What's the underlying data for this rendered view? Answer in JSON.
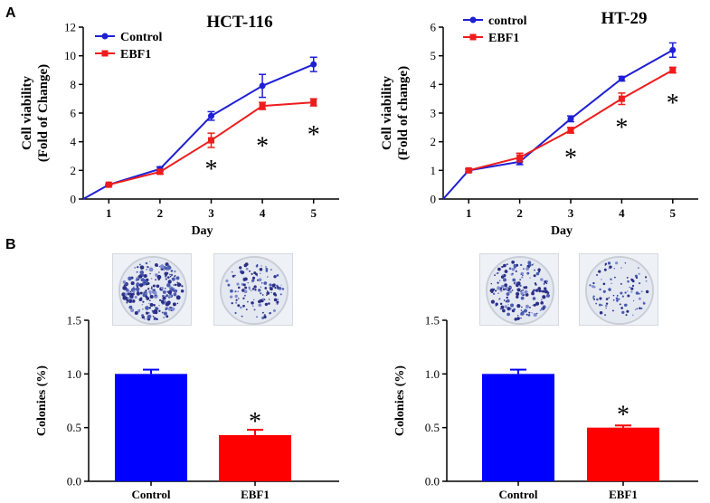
{
  "panel_labels": {
    "a": "A",
    "b": "B"
  },
  "chart_data": [
    {
      "id": "hct116-viability",
      "type": "line",
      "title": "HCT-116",
      "xlabel": "Day",
      "ylabel": [
        "Cell viability",
        "(Fold of Change)"
      ],
      "x": [
        1,
        2,
        3,
        4,
        5
      ],
      "xlim": [
        0.5,
        5.5
      ],
      "ylim": [
        0,
        12
      ],
      "yticks": [
        0,
        2,
        4,
        6,
        8,
        10,
        12
      ],
      "series": [
        {
          "name": "Control",
          "color": "#1f1fd6",
          "marker": "circle",
          "values": [
            1.0,
            2.1,
            5.8,
            7.9,
            9.4
          ],
          "errors": [
            0.05,
            0.15,
            0.3,
            0.8,
            0.5
          ]
        },
        {
          "name": "EBF1",
          "color": "#ee1c1c",
          "marker": "square",
          "values": [
            1.0,
            1.9,
            4.1,
            6.5,
            6.75
          ],
          "errors": [
            0.05,
            0.15,
            0.5,
            0.25,
            0.25
          ]
        }
      ],
      "significance": [
        {
          "x": 3,
          "y": 2.4,
          "label": "*"
        },
        {
          "x": 4,
          "y": 4.0,
          "label": "*"
        },
        {
          "x": 5,
          "y": 4.8,
          "label": "*"
        }
      ],
      "legend": "top-left"
    },
    {
      "id": "ht29-viability",
      "type": "line",
      "title": "HT-29",
      "xlabel": "Day",
      "ylabel": [
        "Cell viability",
        "(Fold of change)"
      ],
      "x": [
        1,
        2,
        3,
        4,
        5
      ],
      "xlim": [
        0.5,
        5.5
      ],
      "ylim": [
        0,
        6
      ],
      "yticks": [
        0,
        1,
        2,
        3,
        4,
        5,
        6
      ],
      "series": [
        {
          "name": "control",
          "color": "#1f1fd6",
          "marker": "circle",
          "values": [
            1.0,
            1.3,
            2.8,
            4.2,
            5.2
          ],
          "errors": [
            0.05,
            0.1,
            0.1,
            0.08,
            0.25
          ]
        },
        {
          "name": "EBF1",
          "color": "#ee1c1c",
          "marker": "square",
          "values": [
            1.0,
            1.45,
            2.4,
            3.5,
            4.5
          ],
          "errors": [
            0.05,
            0.15,
            0.1,
            0.2,
            0.1
          ]
        }
      ],
      "significance": [
        {
          "x": 3,
          "y": 1.6,
          "label": "*"
        },
        {
          "x": 4,
          "y": 2.65,
          "label": "*"
        },
        {
          "x": 5,
          "y": 3.5,
          "label": "*"
        }
      ],
      "legend": "top-left"
    },
    {
      "id": "hct116-colonies",
      "type": "bar",
      "ylabel": "Colonies (%)",
      "categories": [
        "Control",
        "EBF1"
      ],
      "values": [
        1.0,
        0.43
      ],
      "errors": [
        0.04,
        0.05
      ],
      "colors": [
        "#0000ff",
        "#ff0000"
      ],
      "ylim": [
        0,
        1.5
      ],
      "yticks": [
        "0.0",
        "0.5",
        "1.0",
        "1.5"
      ],
      "significance": [
        {
          "category": "EBF1",
          "y": 0.6,
          "label": "*"
        }
      ]
    },
    {
      "id": "ht29-colonies",
      "type": "bar",
      "ylabel": "Colonies (%)",
      "categories": [
        "Control",
        "EBF1"
      ],
      "values": [
        1.0,
        0.5
      ],
      "errors": [
        0.04,
        0.02
      ],
      "colors": [
        "#0000ff",
        "#ff0000"
      ],
      "ylim": [
        0,
        1.5
      ],
      "yticks": [
        "0.0",
        "0.5",
        "1.0",
        "1.5"
      ],
      "significance": [
        {
          "category": "EBF1",
          "y": 0.66,
          "label": "*"
        }
      ]
    }
  ],
  "colony_images": [
    {
      "group": "Control",
      "cell_line": "HCT-116",
      "density": 0.75
    },
    {
      "group": "EBF1",
      "cell_line": "HCT-116",
      "density": 0.35
    },
    {
      "group": "Control",
      "cell_line": "HT-29",
      "density": 0.5
    },
    {
      "group": "EBF1",
      "cell_line": "HT-29",
      "density": 0.2
    }
  ]
}
